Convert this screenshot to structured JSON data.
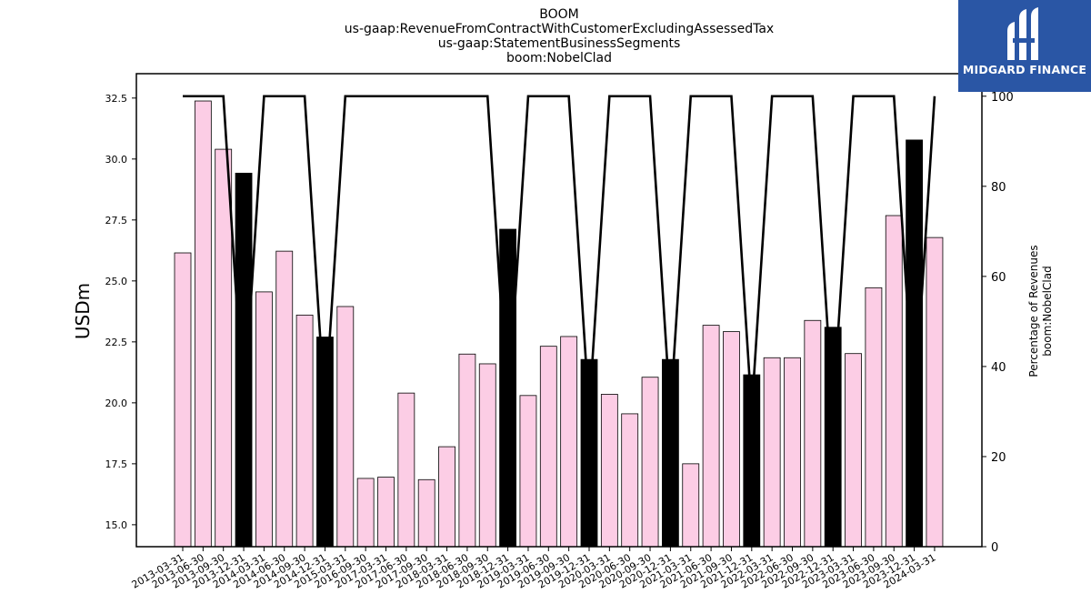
{
  "titles": {
    "line1": "BOOM",
    "line2": "us-gaap:RevenueFromContractWithCustomerExcludingAssessedTax",
    "line3": "us-gaap:StatementBusinessSegments",
    "line4": "boom:NobelClad"
  },
  "logo": {
    "text": "MIDGARD FINANCE",
    "icon": "midgard-logo-icon",
    "color": "#2a56a5"
  },
  "chart_data": {
    "type": "bar",
    "ylabel": "USDm",
    "y2label_line1": "Percentage of Revenues",
    "y2label_line2": "boom:NobelClad",
    "ylim": [
      14.1,
      33.5
    ],
    "y2lim": [
      0,
      105
    ],
    "yticks": [
      "15.0",
      "17.5",
      "20.0",
      "22.5",
      "25.0",
      "27.5",
      "30.0",
      "32.5"
    ],
    "y2ticks": [
      "0",
      "20",
      "40",
      "60",
      "80",
      "100"
    ],
    "colors": {
      "bar": "#fccde5",
      "highlight": "#000000",
      "line": "#000000"
    },
    "categories": [
      "2013-03-31",
      "2013-06-30",
      "2013-09-30",
      "2013-12-31",
      "2014-03-31",
      "2014-06-30",
      "2014-09-30",
      "2014-12-31",
      "2015-03-31",
      "2016-09-30",
      "2017-03-31",
      "2017-06-30",
      "2017-09-30",
      "2018-03-31",
      "2018-06-30",
      "2018-09-30",
      "2018-12-31",
      "2019-03-31",
      "2019-06-30",
      "2019-09-30",
      "2019-12-31",
      "2020-03-31",
      "2020-06-30",
      "2020-09-30",
      "2020-12-31",
      "2021-03-31",
      "2021-06-30",
      "2021-09-30",
      "2021-12-31",
      "2022-03-31",
      "2022-06-30",
      "2022-09-30",
      "2022-12-31",
      "2023-03-31",
      "2023-06-30",
      "2023-09-30",
      "2023-12-31",
      "2024-03-31"
    ],
    "series": [
      {
        "values": [
          26.15,
          32.38,
          30.4,
          29.42,
          24.55,
          26.22,
          23.6,
          22.7,
          23.95,
          16.9,
          16.95,
          20.4,
          16.85,
          18.2,
          22.0,
          21.6,
          27.12,
          20.3,
          22.32,
          22.72,
          21.78,
          20.35,
          19.55,
          21.05,
          21.78,
          17.5,
          23.18,
          22.92,
          21.15,
          21.85,
          21.85,
          23.38,
          23.1,
          22.02,
          24.72,
          27.68,
          30.78,
          26.78
        ],
        "highlight": [
          false,
          false,
          false,
          true,
          false,
          false,
          false,
          true,
          false,
          false,
          false,
          false,
          false,
          false,
          false,
          false,
          true,
          false,
          false,
          false,
          true,
          false,
          false,
          false,
          true,
          false,
          false,
          false,
          true,
          false,
          false,
          false,
          true,
          false,
          false,
          false,
          true,
          false
        ]
      },
      {
        "values": [
          100,
          100,
          100,
          30,
          100,
          100,
          100,
          30,
          100,
          100,
          100,
          100,
          100,
          100,
          100,
          100,
          30,
          100,
          100,
          100,
          30,
          100,
          100,
          100,
          30,
          100,
          100,
          100,
          30,
          100,
          100,
          100,
          30,
          100,
          100,
          100,
          30,
          100
        ]
      }
    ]
  }
}
